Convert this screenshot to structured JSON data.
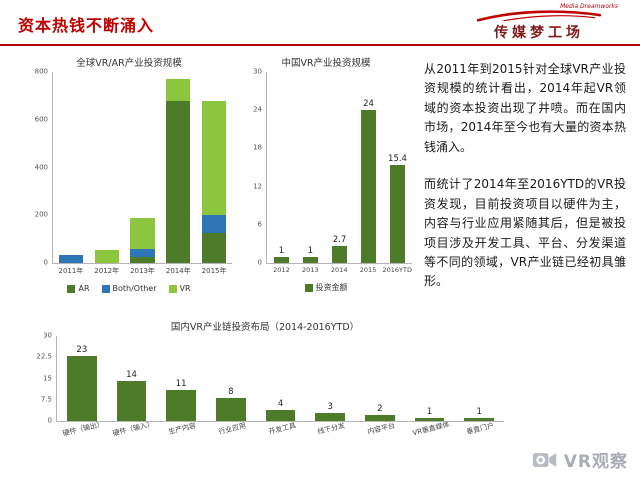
{
  "header": {
    "title": "资本热钱不断涌入",
    "logo_text": "传媒梦工场",
    "logo_subtext": "Media Dreamworks"
  },
  "colors": {
    "title_red": "#c00000",
    "logo_maroon": "#7e1a1a",
    "dark_green": "#4e7b2a",
    "light_green": "#8cc63f",
    "blue": "#2e75b6",
    "watermark_gray": "#a9adb3"
  },
  "paragraphs": {
    "p1": "从2011年到2015针对全球VR产业投资规模的统计看出，2014年起VR领域的资本投资出现了井喷。而在国内市场，2014年至今也有大量的资本热钱涌入。",
    "p2": "而统计了2014年至2016YTD的VR投资发现，目前投资项目以硬件为主，内容与行业应用紧随其后，但是被投项目涉及开发工具、平台、分发渠道等不同的领域，VR产业链已经初具雏形。"
  },
  "watermark": {
    "text": "VR观察"
  },
  "chart_data": [
    {
      "type": "bar",
      "stacked": true,
      "title": "全球VR/AR产业投资规模",
      "categories": [
        "2011年",
        "2012年",
        "2013年",
        "2014年",
        "2015年"
      ],
      "series": [
        {
          "name": "AR",
          "color": "#4e7b2a",
          "values": [
            0,
            0,
            25,
            680,
            125
          ]
        },
        {
          "name": "Both/Other",
          "color": "#2e75b6",
          "values": [
            35,
            0,
            35,
            0,
            75
          ]
        },
        {
          "name": "VR",
          "color": "#8cc63f",
          "values": [
            0,
            55,
            130,
            90,
            480
          ]
        }
      ],
      "ylim": [
        0,
        800
      ],
      "yticks": [
        0,
        200,
        400,
        600,
        800
      ],
      "grid": false,
      "legend_position": "bottom",
      "value_labels": false
    },
    {
      "type": "bar",
      "stacked": false,
      "title": "中国VR产业投资规模",
      "categories": [
        "2012",
        "2013",
        "2014",
        "2015",
        "2016YTD"
      ],
      "series": [
        {
          "name": "投资金额",
          "color": "#4e7b2a",
          "values": [
            1,
            1,
            2.7,
            24,
            15.4
          ]
        }
      ],
      "ylim": [
        0,
        30
      ],
      "yticks": [
        0,
        6,
        12,
        18,
        24,
        30
      ],
      "grid": false,
      "legend_position": "bottom",
      "value_labels": true
    },
    {
      "type": "bar",
      "stacked": false,
      "title": "国内VR产业链投资布局（2014-2016YTD）",
      "categories": [
        "硬件（输出）",
        "硬件（输入）",
        "生产内容",
        "行业应用",
        "开发工具",
        "线下分发",
        "内容平台",
        "VR垂直媒体",
        "垂直门户"
      ],
      "series": [
        {
          "name": "",
          "color": "#4e7b2a",
          "values": [
            23,
            14,
            11,
            8,
            4,
            3,
            2,
            1,
            1
          ]
        }
      ],
      "ylim": [
        0,
        30
      ],
      "yticks": [
        0,
        7.5,
        15,
        22.5,
        30
      ],
      "grid": false,
      "legend_position": "none",
      "value_labels": true
    }
  ]
}
